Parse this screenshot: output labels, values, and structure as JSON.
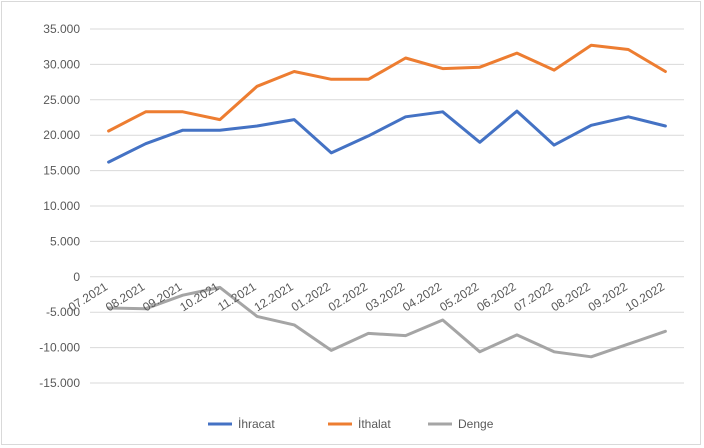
{
  "chart_data": {
    "type": "line",
    "title": "",
    "xlabel": "",
    "ylabel": "",
    "categories": [
      "07.2021",
      "08.2021",
      "09.2021",
      "10.2021",
      "11.2021",
      "12.2021",
      "01.2022",
      "02.2022",
      "03.2022",
      "04.2022",
      "05.2022",
      "06.2022",
      "07.2022",
      "08.2022",
      "09.2022",
      "10.2022"
    ],
    "yticks": [
      "35.000",
      "30.000",
      "25.000",
      "20.000",
      "15.000",
      "10.000",
      "5.000",
      "0",
      "-5.000",
      "-10.000",
      "-15.000"
    ],
    "ylim": [
      -15000,
      35000
    ],
    "grid": true,
    "legend_position": "bottom",
    "series": [
      {
        "name": "İhracat",
        "color": "#4472c4",
        "values": [
          16200,
          18800,
          20700,
          20700,
          21300,
          22200,
          17500,
          19900,
          22600,
          23300,
          19000,
          23400,
          18600,
          21400,
          22600,
          21300
        ]
      },
      {
        "name": "İthalat",
        "color": "#ed7d31",
        "values": [
          20600,
          23300,
          23300,
          22200,
          26900,
          29000,
          27900,
          27900,
          30900,
          29400,
          29600,
          31600,
          29200,
          32700,
          32100,
          29000
        ]
      },
      {
        "name": "Denge",
        "color": "#a5a5a5",
        "values": [
          -4400,
          -4500,
          -2600,
          -1500,
          -5600,
          -6800,
          -10400,
          -8000,
          -8300,
          -6100,
          -10600,
          -8200,
          -10600,
          -11300,
          -9500,
          -7700
        ]
      }
    ]
  }
}
